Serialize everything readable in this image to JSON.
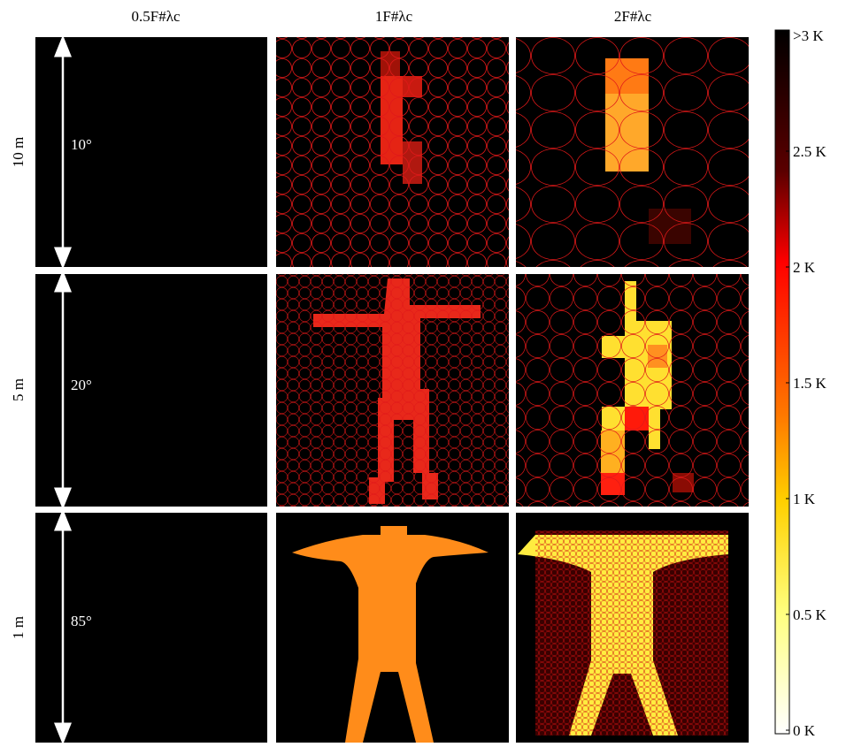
{
  "columns": [
    "0.5F#λc",
    "1F#λc",
    "2F#λc"
  ],
  "rows": [
    {
      "distance": "10 m",
      "angle": "10°"
    },
    {
      "distance": "5 m",
      "angle": "20°"
    },
    {
      "distance": "1 m",
      "angle": "85°"
    }
  ],
  "colorbar": {
    "labels": [
      ">3 K",
      "2.5 K",
      "2 K",
      "1.5 K",
      "1 K",
      "0.5 K",
      "0 K"
    ]
  }
}
